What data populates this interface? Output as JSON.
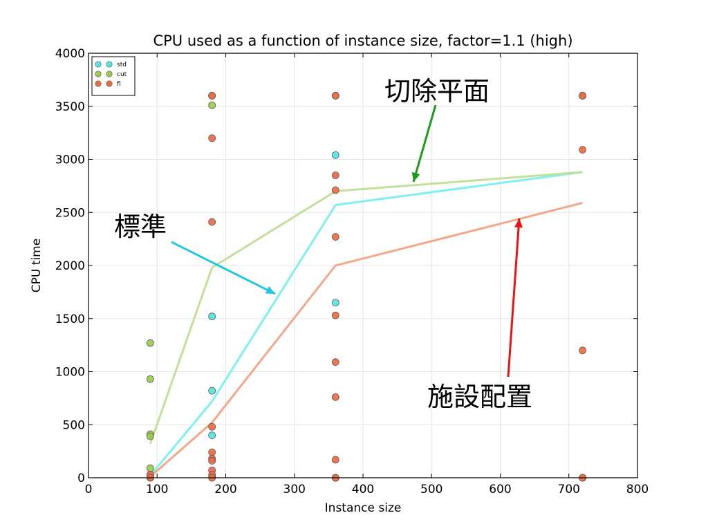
{
  "chart_data": {
    "type": "scatter",
    "title": "CPU used as a function of instance size, factor=1.1 (high)",
    "xlabel": "Instance size",
    "ylabel": "CPU time",
    "xlim": [
      0,
      800
    ],
    "ylim": [
      0,
      4000
    ],
    "xticks": [
      "0",
      "100",
      "200",
      "300",
      "400",
      "500",
      "600",
      "700",
      "800"
    ],
    "yticks": [
      "0",
      "500",
      "1000",
      "1500",
      "2000",
      "2500",
      "3000",
      "3500",
      "4000"
    ],
    "grid": true,
    "legend_position": "top-left",
    "series": [
      {
        "name": "std",
        "color": "#55e5e5",
        "line_color": "#7ff0f0",
        "points": [
          [
            90,
            0
          ],
          [
            90,
            10
          ],
          [
            90,
            20
          ],
          [
            180,
            1520
          ],
          [
            180,
            820
          ],
          [
            180,
            400
          ],
          [
            180,
            3600
          ],
          [
            360,
            3040
          ],
          [
            360,
            1650
          ],
          [
            360,
            3600
          ],
          [
            360,
            0
          ],
          [
            720,
            3600
          ],
          [
            720,
            0
          ]
        ],
        "line": [
          [
            90,
            20
          ],
          [
            180,
            720
          ],
          [
            360,
            2570
          ],
          [
            720,
            2880
          ]
        ]
      },
      {
        "name": "cut",
        "color": "#9ccc4c",
        "line_color": "#c3e09a",
        "points": [
          [
            90,
            1270
          ],
          [
            90,
            930
          ],
          [
            90,
            410
          ],
          [
            90,
            390
          ],
          [
            90,
            90
          ],
          [
            90,
            20
          ],
          [
            180,
            3510
          ],
          [
            180,
            3600
          ],
          [
            180,
            10
          ],
          [
            360,
            3600
          ],
          [
            360,
            0
          ],
          [
            720,
            3600
          ],
          [
            720,
            0
          ]
        ],
        "line": [
          [
            90,
            320
          ],
          [
            180,
            1980
          ],
          [
            360,
            2700
          ],
          [
            720,
            2880
          ]
        ]
      },
      {
        "name": "fl",
        "color": "#ee6a44",
        "line_color": "#f5a58a",
        "points": [
          [
            90,
            30
          ],
          [
            90,
            0
          ],
          [
            180,
            3600
          ],
          [
            180,
            3200
          ],
          [
            180,
            2410
          ],
          [
            180,
            480
          ],
          [
            180,
            240
          ],
          [
            180,
            180
          ],
          [
            180,
            160
          ],
          [
            180,
            70
          ],
          [
            180,
            30
          ],
          [
            180,
            0
          ],
          [
            360,
            3600
          ],
          [
            360,
            2850
          ],
          [
            360,
            2710
          ],
          [
            360,
            2270
          ],
          [
            360,
            1530
          ],
          [
            360,
            1090
          ],
          [
            360,
            760
          ],
          [
            360,
            170
          ],
          [
            360,
            0
          ],
          [
            720,
            3600
          ],
          [
            720,
            3090
          ],
          [
            720,
            1200
          ],
          [
            720,
            0
          ]
        ],
        "line": [
          [
            90,
            10
          ],
          [
            180,
            520
          ],
          [
            360,
            2000
          ],
          [
            720,
            2590
          ]
        ]
      }
    ],
    "annotations": [
      {
        "text": "切除平面",
        "color": "#1a9a1a"
      },
      {
        "text": "標準",
        "color": "#22c4e8"
      },
      {
        "text": "施設配置",
        "color": "#ee1111"
      }
    ]
  }
}
